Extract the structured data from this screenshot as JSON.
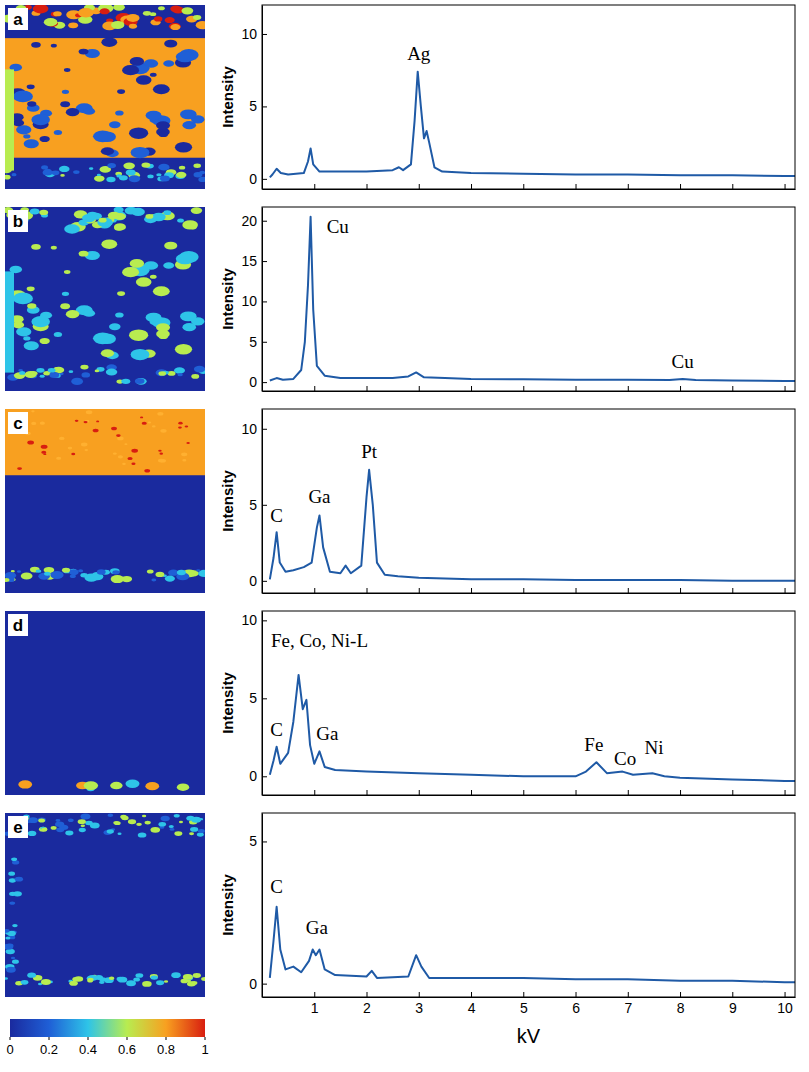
{
  "chart_data": [
    {
      "type": "line",
      "panel": "a",
      "ylabel": "Intensity",
      "color": "#1f5aa6",
      "x": [
        0.15,
        0.2,
        0.28,
        0.36,
        0.5,
        0.8,
        0.88,
        0.93,
        0.98,
        1.1,
        1.5,
        2.0,
        2.5,
        2.62,
        2.7,
        2.85,
        2.92,
        2.98,
        3.04,
        3.1,
        3.15,
        3.2,
        3.3,
        3.45,
        4,
        5,
        6,
        7,
        8,
        9,
        10,
        10.2
      ],
      "values": [
        0.1,
        0.3,
        0.7,
        0.4,
        0.3,
        0.4,
        1.2,
        2.1,
        1.0,
        0.5,
        0.5,
        0.5,
        0.6,
        0.8,
        0.6,
        1.0,
        4.0,
        7.4,
        5.0,
        2.8,
        3.3,
        2.5,
        0.8,
        0.5,
        0.4,
        0.35,
        0.3,
        0.3,
        0.25,
        0.25,
        0.2,
        0.2
      ],
      "xlim": [
        0,
        10.2
      ],
      "ylim": [
        -0.7,
        12
      ],
      "xticks": [
        1,
        2,
        3,
        4,
        5,
        6,
        7,
        8,
        9,
        10
      ],
      "yticks": [
        0,
        5,
        10
      ],
      "tick_labels": "y",
      "annotations": [
        {
          "text": "Ag",
          "x": 3.0,
          "y": 8.2
        }
      ]
    },
    {
      "type": "line",
      "panel": "b",
      "ylabel": "Intensity",
      "color": "#1f5aa6",
      "x": [
        0.15,
        0.28,
        0.4,
        0.6,
        0.75,
        0.82,
        0.88,
        0.93,
        0.98,
        1.05,
        1.2,
        1.5,
        2.0,
        2.5,
        2.8,
        2.95,
        3.1,
        3.5,
        4,
        5,
        6,
        7,
        7.8,
        8.05,
        8.3,
        9,
        10,
        10.2
      ],
      "values": [
        0.2,
        0.5,
        0.3,
        0.4,
        1.5,
        5,
        12,
        20.5,
        9,
        2,
        0.8,
        0.5,
        0.5,
        0.5,
        0.7,
        1.2,
        0.6,
        0.5,
        0.4,
        0.35,
        0.3,
        0.3,
        0.25,
        0.4,
        0.25,
        0.2,
        0.15,
        0.15
      ],
      "xlim": [
        0,
        10.2
      ],
      "ylim": [
        -1.1,
        21.7
      ],
      "xticks": [
        1,
        2,
        3,
        4,
        5,
        6,
        7,
        8,
        9,
        10
      ],
      "yticks": [
        0,
        5,
        10,
        15,
        20
      ],
      "tick_labels": "y",
      "annotations": [
        {
          "text": "Cu",
          "x": 1.45,
          "y": 18.5
        },
        {
          "text": "Cu",
          "x": 8.05,
          "y": 1.8
        }
      ]
    },
    {
      "type": "line",
      "panel": "c",
      "ylabel": "Intensity",
      "color": "#1f5aa6",
      "x": [
        0.15,
        0.22,
        0.28,
        0.34,
        0.45,
        0.6,
        0.8,
        0.95,
        1.05,
        1.1,
        1.17,
        1.3,
        1.5,
        1.6,
        1.7,
        1.9,
        2.0,
        2.05,
        2.12,
        2.2,
        2.35,
        2.6,
        3,
        4,
        5,
        6,
        7,
        8,
        9,
        10,
        10.2
      ],
      "values": [
        0.1,
        1.5,
        3.2,
        1.2,
        0.6,
        0.7,
        0.9,
        1.2,
        3.5,
        4.3,
        2.2,
        0.6,
        0.5,
        1.0,
        0.5,
        1.0,
        5.5,
        7.3,
        5.0,
        1.2,
        0.4,
        0.3,
        0.2,
        0.1,
        0.1,
        0.05,
        0.05,
        0.05,
        0,
        0,
        0
      ],
      "xlim": [
        0,
        10.2
      ],
      "ylim": [
        -0.8,
        11.3
      ],
      "xticks": [
        1,
        2,
        3,
        4,
        5,
        6,
        7,
        8,
        9,
        10
      ],
      "yticks": [
        0,
        5,
        10
      ],
      "tick_labels": "y",
      "annotations": [
        {
          "text": "C",
          "x": 0.28,
          "y": 3.9
        },
        {
          "text": "Ga",
          "x": 1.1,
          "y": 5.1
        },
        {
          "text": "Pt",
          "x": 2.05,
          "y": 8.1
        }
      ]
    },
    {
      "type": "line",
      "panel": "d",
      "ylabel": "Intensity",
      "color": "#1f5aa6",
      "x": [
        0.15,
        0.22,
        0.28,
        0.35,
        0.5,
        0.6,
        0.7,
        0.78,
        0.85,
        0.92,
        1.0,
        1.1,
        1.2,
        1.4,
        2,
        3,
        4,
        5,
        6,
        6.2,
        6.4,
        6.6,
        6.9,
        7.1,
        7.47,
        7.7,
        8,
        9,
        10,
        10.2
      ],
      "values": [
        0.1,
        1.0,
        1.9,
        0.8,
        1.5,
        3.5,
        6.5,
        4.3,
        4.9,
        2.0,
        0.8,
        1.6,
        0.6,
        0.4,
        0.3,
        0.2,
        0.1,
        0.0,
        0.0,
        0.3,
        0.9,
        0.2,
        0.3,
        0.1,
        0.2,
        0,
        -0.1,
        -0.2,
        -0.3,
        -0.3
      ],
      "xlim": [
        0,
        10.2
      ],
      "ylim": [
        -1.2,
        10.6
      ],
      "xticks": [
        1,
        2,
        3,
        4,
        5,
        6,
        7,
        8,
        9,
        10
      ],
      "yticks": [
        0,
        5,
        10
      ],
      "tick_labels": "y",
      "annotations": [
        {
          "text": "Fe, Co, Ni-L",
          "x": 1.1,
          "y": 8.3
        },
        {
          "text": "C",
          "x": 0.28,
          "y": 2.6
        },
        {
          "text": "Ga",
          "x": 1.25,
          "y": 2.3
        },
        {
          "text": "Fe",
          "x": 6.35,
          "y": 1.6
        },
        {
          "text": "Co",
          "x": 6.95,
          "y": 0.7
        },
        {
          "text": "Ni",
          "x": 7.5,
          "y": 1.4
        }
      ]
    },
    {
      "type": "line",
      "panel": "e",
      "ylabel": "Intensity",
      "xlabel": "kV",
      "color": "#1f5aa6",
      "x": [
        0.15,
        0.22,
        0.28,
        0.35,
        0.45,
        0.6,
        0.75,
        0.9,
        0.97,
        1.03,
        1.1,
        1.2,
        1.4,
        2.0,
        2.1,
        2.2,
        2.8,
        2.95,
        3.05,
        3.2,
        4,
        5,
        6,
        7,
        8,
        9,
        10,
        10.2
      ],
      "values": [
        0.2,
        1.5,
        2.7,
        1.2,
        0.5,
        0.6,
        0.4,
        0.8,
        1.2,
        1.0,
        1.2,
        0.5,
        0.3,
        0.25,
        0.45,
        0.2,
        0.25,
        1.0,
        0.6,
        0.2,
        0.2,
        0.2,
        0.15,
        0.15,
        0.1,
        0.1,
        0.05,
        0.05
      ],
      "xlim": [
        0,
        10.2
      ],
      "ylim": [
        -0.47,
        6
      ],
      "xticks": [
        1,
        2,
        3,
        4,
        5,
        6,
        7,
        8,
        9,
        10
      ],
      "yticks": [
        0,
        5
      ],
      "annotations": [
        {
          "text": "C",
          "x": 0.28,
          "y": 3.2
        },
        {
          "text": "Ga",
          "x": 1.05,
          "y": 1.75
        }
      ]
    }
  ],
  "colorbar": {
    "range": [
      0,
      1
    ],
    "ticks": [
      0,
      0.2,
      0.4,
      0.6,
      0.8,
      1
    ],
    "colors": [
      "#1a2a9e",
      "#1f5fd6",
      "#2ec4e8",
      "#b8ec50",
      "#f8a020",
      "#d81e10"
    ]
  }
}
